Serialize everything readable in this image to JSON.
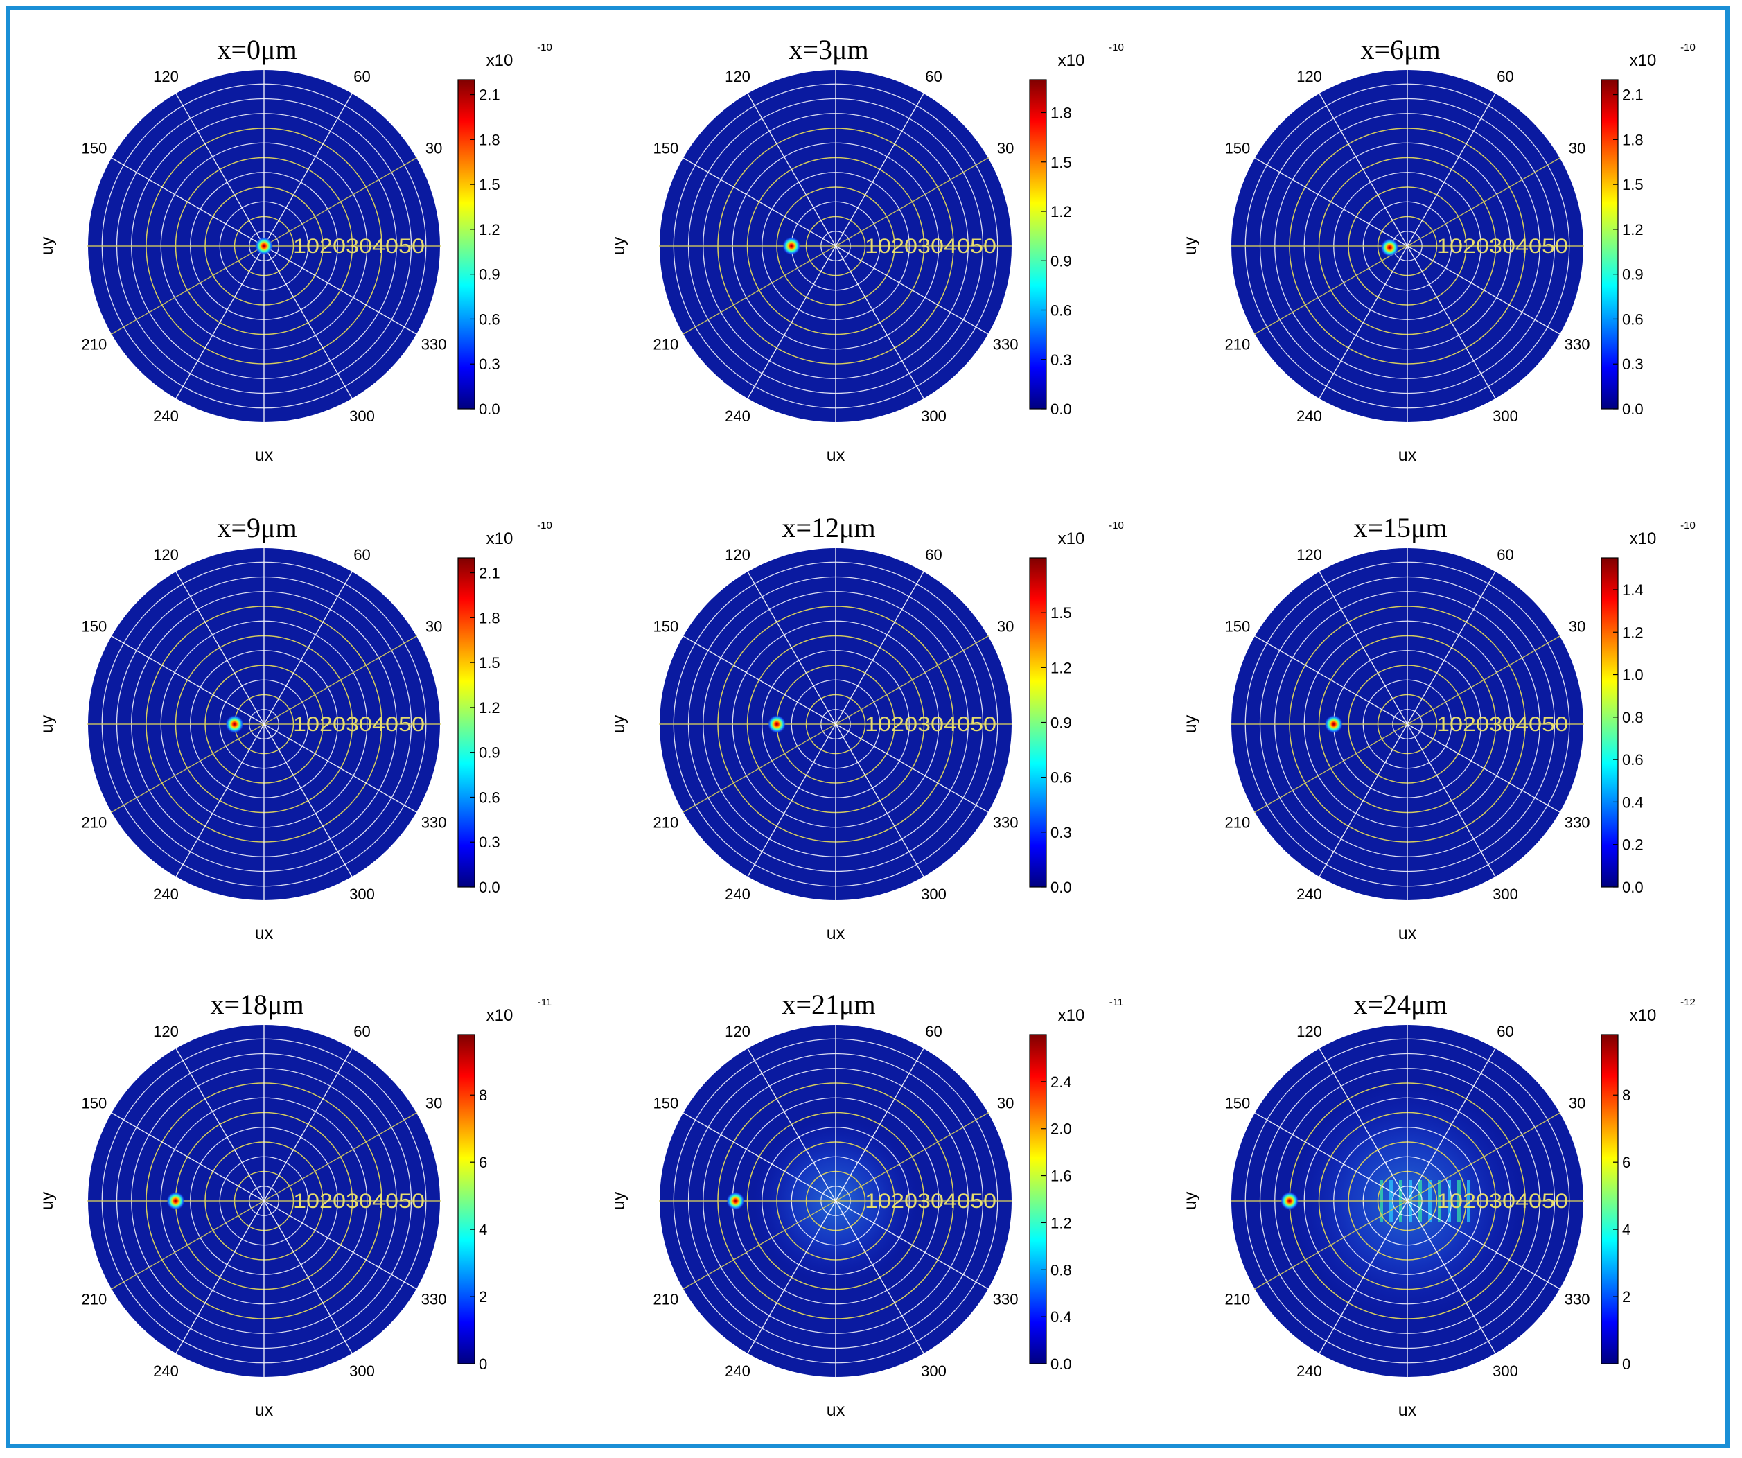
{
  "figure": {
    "colors": {
      "frame": "#1a8fd6",
      "background": "#0a1aa0",
      "grid_white": "#ffffff",
      "grid_yellow": "#d6cc5e",
      "radial_label": "#e6dc6e"
    },
    "colormap": "jet"
  },
  "chart_data": [
    {
      "type": "heatmap",
      "title": "x=0μm",
      "xlabel": "ux",
      "ylabel": "uy",
      "angle_labels": [
        "30",
        "60",
        "120",
        "150",
        "210",
        "240",
        "300",
        "330"
      ],
      "radial_labels": [
        "10",
        "20",
        "30",
        "40",
        "50"
      ],
      "colorbar": {
        "exponent": "-10",
        "multiplier": "x10",
        "ticks": [
          "0.0",
          "0.3",
          "0.6",
          "0.9",
          "1.2",
          "1.5",
          "1.8",
          "2.1"
        ],
        "max": 2.2
      },
      "spots": [
        {
          "r": 0,
          "theta": 0,
          "intensity": 1.0
        }
      ],
      "halo": false
    },
    {
      "type": "heatmap",
      "title": "x=3μm",
      "xlabel": "ux",
      "ylabel": "uy",
      "angle_labels": [
        "30",
        "60",
        "120",
        "150",
        "210",
        "240",
        "300",
        "330"
      ],
      "radial_labels": [
        "10",
        "20",
        "30",
        "40",
        "50"
      ],
      "colorbar": {
        "exponent": "-10",
        "multiplier": "x10",
        "ticks": [
          "0.0",
          "0.3",
          "0.6",
          "0.9",
          "1.2",
          "1.5",
          "1.8"
        ],
        "max": 2.0
      },
      "spots": [
        {
          "r": 15,
          "theta": 180,
          "intensity": 1.0
        }
      ],
      "halo": false
    },
    {
      "type": "heatmap",
      "title": "x=6μm",
      "xlabel": "ux",
      "ylabel": "uy",
      "angle_labels": [
        "30",
        "60",
        "120",
        "150",
        "210",
        "240",
        "300",
        "330"
      ],
      "radial_labels": [
        "10",
        "20",
        "30",
        "40",
        "50"
      ],
      "colorbar": {
        "exponent": "-10",
        "multiplier": "x10",
        "ticks": [
          "0.0",
          "0.3",
          "0.6",
          "0.9",
          "1.2",
          "1.5",
          "1.8",
          "2.1"
        ],
        "max": 2.2
      },
      "spots": [
        {
          "r": 6,
          "theta": 185,
          "intensity": 1.0
        }
      ],
      "halo": false
    },
    {
      "type": "heatmap",
      "title": "x=9μm",
      "xlabel": "ux",
      "ylabel": "uy",
      "angle_labels": [
        "30",
        "60",
        "120",
        "150",
        "210",
        "240",
        "300",
        "330"
      ],
      "radial_labels": [
        "10",
        "20",
        "30",
        "40",
        "50"
      ],
      "colorbar": {
        "exponent": "-10",
        "multiplier": "x10",
        "ticks": [
          "0.0",
          "0.3",
          "0.6",
          "0.9",
          "1.2",
          "1.5",
          "1.8",
          "2.1"
        ],
        "max": 2.2
      },
      "spots": [
        {
          "r": 10,
          "theta": 180,
          "intensity": 1.0
        }
      ],
      "halo": false
    },
    {
      "type": "heatmap",
      "title": "x=12μm",
      "xlabel": "ux",
      "ylabel": "uy",
      "angle_labels": [
        "30",
        "60",
        "120",
        "150",
        "210",
        "240",
        "300",
        "330"
      ],
      "radial_labels": [
        "10",
        "20",
        "30",
        "40",
        "50"
      ],
      "colorbar": {
        "exponent": "-10",
        "multiplier": "x10",
        "ticks": [
          "0.0",
          "0.3",
          "0.6",
          "0.9",
          "1.2",
          "1.5"
        ],
        "max": 1.8
      },
      "spots": [
        {
          "r": 20,
          "theta": 180,
          "intensity": 1.0
        }
      ],
      "halo": false
    },
    {
      "type": "heatmap",
      "title": "x=15μm",
      "xlabel": "ux",
      "ylabel": "uy",
      "angle_labels": [
        "30",
        "60",
        "120",
        "150",
        "210",
        "240",
        "300",
        "330"
      ],
      "radial_labels": [
        "10",
        "20",
        "30",
        "40",
        "50"
      ],
      "colorbar": {
        "exponent": "-10",
        "multiplier": "x10",
        "ticks": [
          "0.0",
          "0.2",
          "0.4",
          "0.6",
          "0.8",
          "1.0",
          "1.2",
          "1.4"
        ],
        "max": 1.55
      },
      "spots": [
        {
          "r": 25,
          "theta": 180,
          "intensity": 1.0
        }
      ],
      "halo": false
    },
    {
      "type": "heatmap",
      "title": "x=18μm",
      "xlabel": "ux",
      "ylabel": "uy",
      "angle_labels": [
        "30",
        "60",
        "120",
        "150",
        "210",
        "240",
        "300",
        "330"
      ],
      "radial_labels": [
        "10",
        "20",
        "30",
        "40",
        "50"
      ],
      "colorbar": {
        "exponent": "-11",
        "multiplier": "x10",
        "ticks": [
          "0",
          "2",
          "4",
          "6",
          "8"
        ],
        "max": 9.8
      },
      "spots": [
        {
          "r": 30,
          "theta": 180,
          "intensity": 1.0
        }
      ],
      "halo": false
    },
    {
      "type": "heatmap",
      "title": "x=21μm",
      "xlabel": "ux",
      "ylabel": "uy",
      "angle_labels": [
        "30",
        "60",
        "120",
        "150",
        "210",
        "240",
        "300",
        "330"
      ],
      "radial_labels": [
        "10",
        "20",
        "30",
        "40",
        "50"
      ],
      "colorbar": {
        "exponent": "-11",
        "multiplier": "x10",
        "ticks": [
          "0.0",
          "0.4",
          "0.8",
          "1.2",
          "1.6",
          "2.0",
          "2.4"
        ],
        "max": 2.8
      },
      "spots": [
        {
          "r": 34,
          "theta": 180,
          "intensity": 1.0
        }
      ],
      "halo": true
    },
    {
      "type": "heatmap",
      "title": "x=24μm",
      "xlabel": "ux",
      "ylabel": "uy",
      "angle_labels": [
        "30",
        "60",
        "120",
        "150",
        "210",
        "240",
        "300",
        "330"
      ],
      "radial_labels": [
        "10",
        "20",
        "30",
        "40",
        "50"
      ],
      "colorbar": {
        "exponent": "-12",
        "multiplier": "x10",
        "ticks": [
          "0",
          "2",
          "4",
          "6",
          "8"
        ],
        "max": 9.8
      },
      "spots": [
        {
          "r": 40,
          "theta": 180,
          "intensity": 1.0
        }
      ],
      "halo": true
    }
  ]
}
